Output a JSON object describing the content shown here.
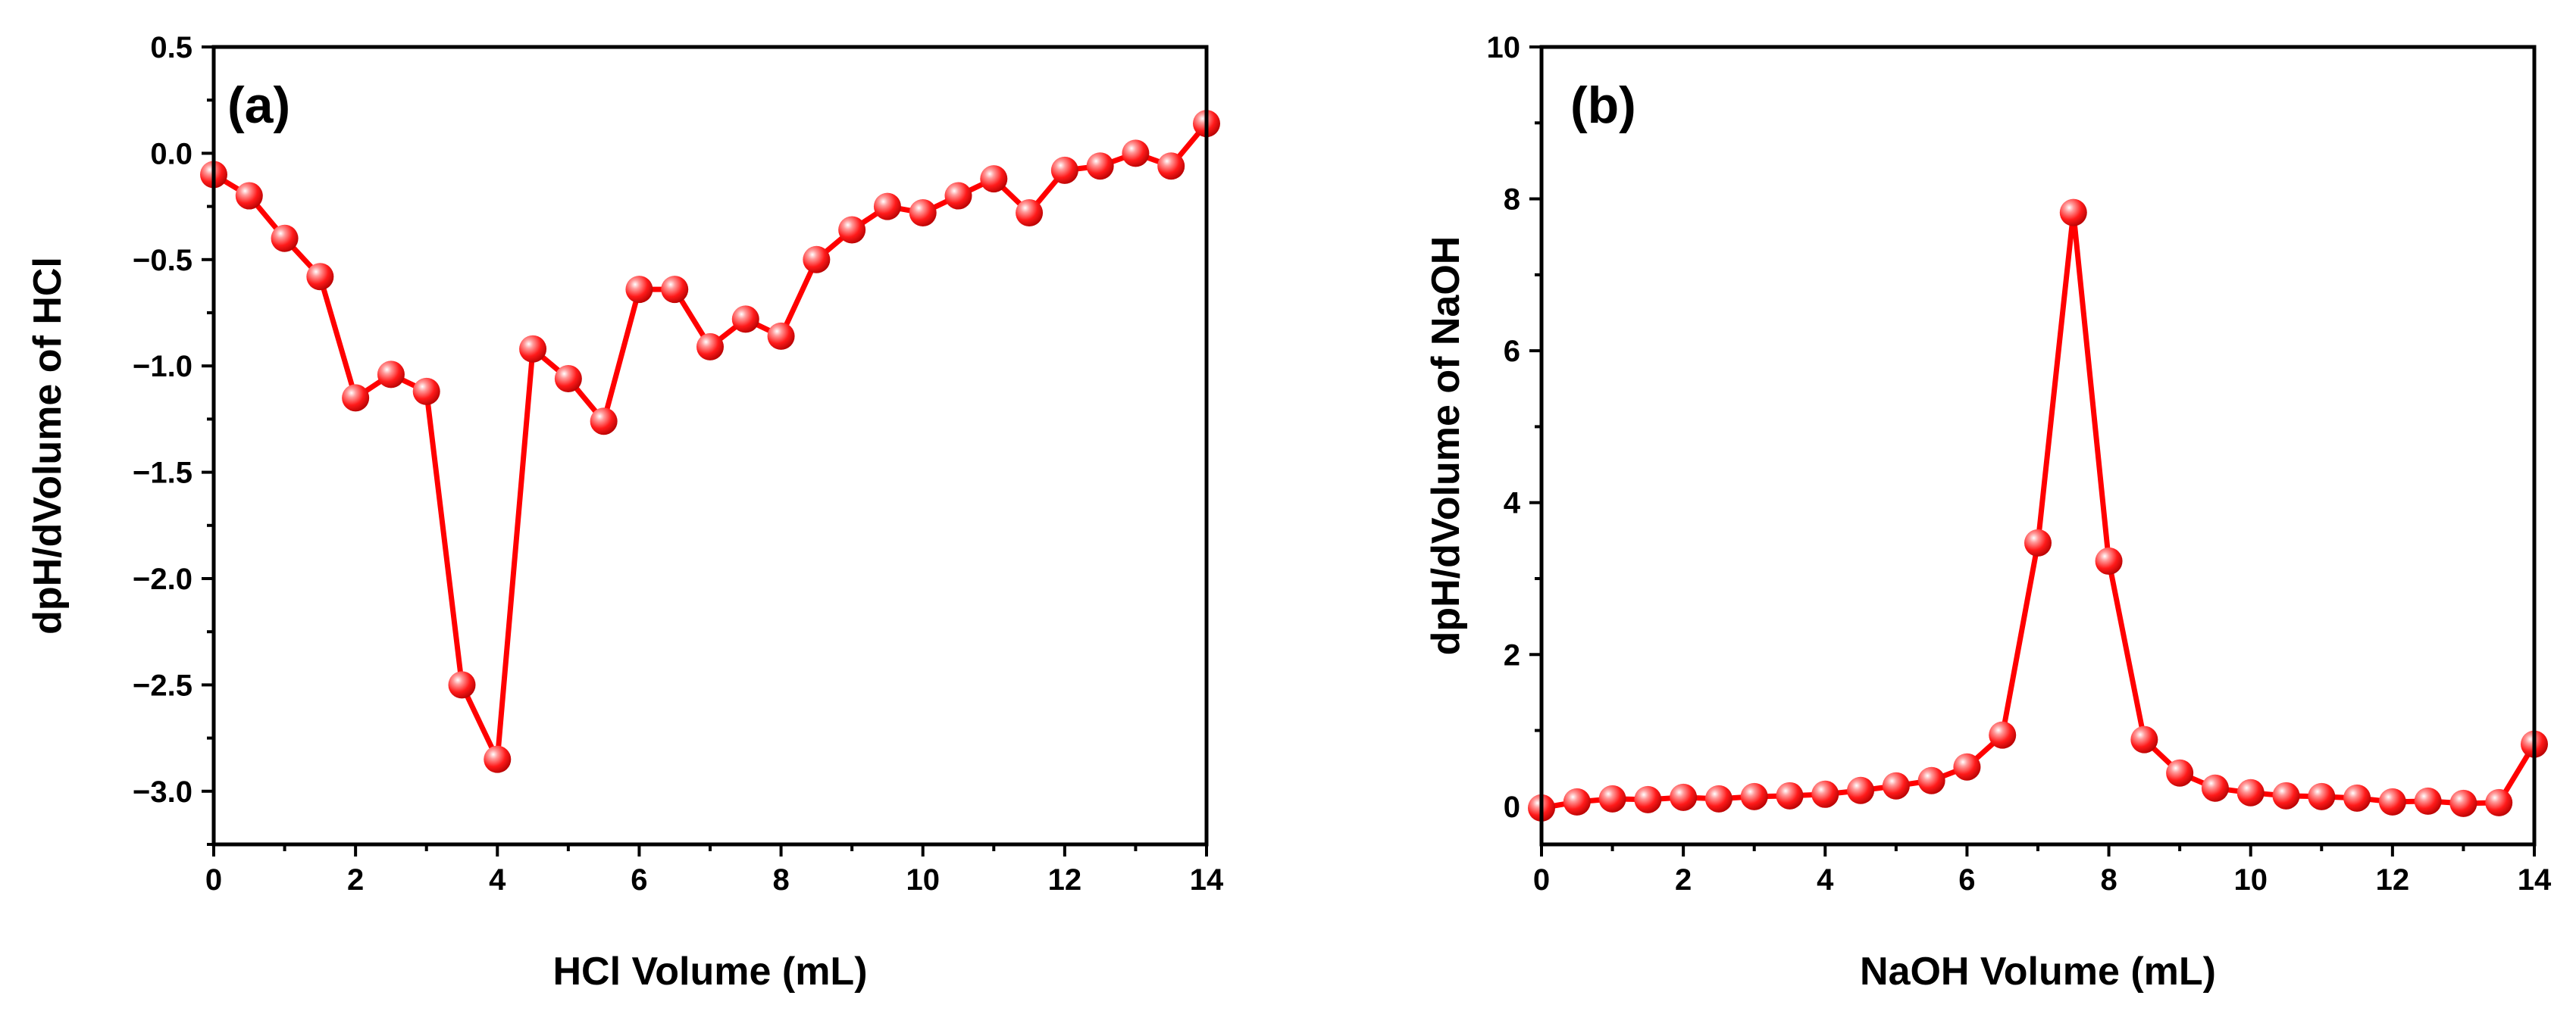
{
  "chart_data": [
    {
      "type": "line",
      "panel_label": "(a)",
      "title": "",
      "xlabel": "HCl Volume (mL)",
      "ylabel": "dpH/dVolume of HCl",
      "xlim": [
        0,
        14
      ],
      "ylim": [
        -3.25,
        0.5
      ],
      "x_ticks": [
        0,
        2,
        4,
        6,
        8,
        10,
        12,
        14
      ],
      "x_tick_labels": [
        "0",
        "2",
        "4",
        "6",
        "8",
        "10",
        "12",
        "14"
      ],
      "y_ticks": [
        -3.0,
        -2.5,
        -2.0,
        -1.5,
        -1.0,
        -0.5,
        0.0,
        0.5
      ],
      "y_tick_labels": [
        "−3.0",
        "−2.5",
        "−2.0",
        "−1.5",
        "−1.0",
        "−0.5",
        "0.0",
        "0.5"
      ],
      "series": [
        {
          "name": "HCl",
          "color": "#ff0000",
          "x": [
            0,
            0.5,
            1,
            1.5,
            2,
            2.5,
            3,
            3.5,
            4,
            4.5,
            5,
            5.5,
            6,
            6.5,
            7,
            7.5,
            8,
            8.5,
            9,
            9.5,
            10,
            10.5,
            11,
            11.5,
            12,
            12.5,
            13,
            13.5,
            14
          ],
          "values": [
            -0.1,
            -0.2,
            -0.4,
            -0.58,
            -1.15,
            -1.04,
            -1.12,
            -2.5,
            -2.85,
            -0.92,
            -1.06,
            -1.26,
            -0.64,
            -0.64,
            -0.91,
            -0.78,
            -0.86,
            -0.5,
            -0.36,
            -0.25,
            -0.28,
            -0.2,
            -0.12,
            -0.28,
            -0.08,
            -0.06,
            0.0,
            -0.06,
            0.14
          ]
        }
      ]
    },
    {
      "type": "line",
      "panel_label": "(b)",
      "title": "",
      "xlabel": "NaOH Volume (mL)",
      "ylabel": "dpH/dVolume of NaOH",
      "xlim": [
        0,
        14
      ],
      "ylim": [
        -0.5,
        10
      ],
      "x_ticks": [
        0,
        2,
        4,
        6,
        8,
        10,
        12,
        14
      ],
      "x_tick_labels": [
        "0",
        "2",
        "4",
        "6",
        "8",
        "10",
        "12",
        "14"
      ],
      "y_ticks": [
        0,
        2,
        4,
        6,
        8,
        10
      ],
      "y_tick_labels": [
        "0",
        "2",
        "4",
        "6",
        "8",
        "10"
      ],
      "series": [
        {
          "name": "NaOH",
          "color": "#ff0000",
          "x": [
            0,
            0.5,
            1,
            1.5,
            2,
            2.5,
            3,
            3.5,
            4,
            4.5,
            5,
            5.5,
            6,
            6.5,
            7,
            7.5,
            8,
            8.5,
            9,
            9.5,
            10,
            10.5,
            11,
            11.5,
            12,
            12.5,
            13,
            13.5,
            14
          ],
          "values": [
            -0.02,
            0.06,
            0.1,
            0.09,
            0.12,
            0.1,
            0.13,
            0.14,
            0.16,
            0.21,
            0.27,
            0.34,
            0.52,
            0.94,
            3.47,
            7.82,
            3.23,
            0.88,
            0.44,
            0.24,
            0.18,
            0.14,
            0.13,
            0.11,
            0.06,
            0.07,
            0.04,
            0.05,
            0.82
          ]
        }
      ]
    }
  ]
}
